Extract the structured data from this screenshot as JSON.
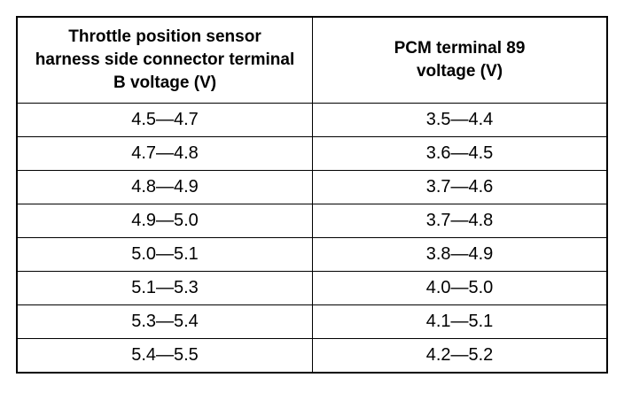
{
  "table": {
    "headers": [
      "Throttle position sensor harness side connector terminal B voltage (V)",
      "PCM terminal 89 voltage (V)"
    ],
    "rows": [
      [
        "4.5—4.7",
        "3.5—4.4"
      ],
      [
        "4.7—4.8",
        "3.6—4.5"
      ],
      [
        "4.8—4.9",
        "3.7—4.6"
      ],
      [
        "4.9—5.0",
        "3.7—4.8"
      ],
      [
        "5.0—5.1",
        "3.8—4.9"
      ],
      [
        "5.1—5.3",
        "4.0—5.0"
      ],
      [
        "5.3—5.4",
        "4.1—5.1"
      ],
      [
        "5.4—5.5",
        "4.2—5.2"
      ]
    ]
  }
}
